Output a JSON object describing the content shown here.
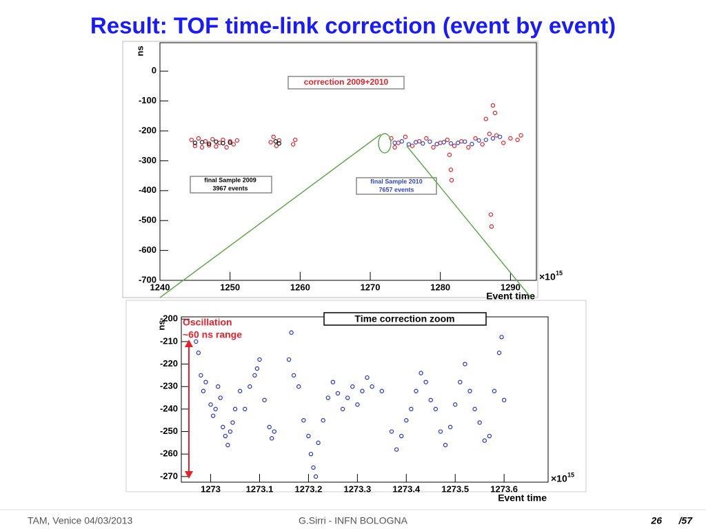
{
  "slide": {
    "title": "Result: TOF time-link correction (event by event)",
    "footer": {
      "left": "TAM, Venice 04/03/2013",
      "center": "G.Sirri - INFN BOLOGNA",
      "page": "26",
      "total": "/57"
    }
  },
  "chart_data": [
    {
      "type": "scatter",
      "annotations": [
        "correction 2009+2010",
        "final Sample 2009",
        "3967 events",
        "final Sample 2010",
        "7657 events"
      ],
      "y_label": "ns",
      "x_label": "Event time",
      "x_scale": {
        "base": "×10",
        "exponent": "15"
      },
      "xlim": [
        1240,
        1293.7
      ],
      "xticks": [
        1240,
        1250,
        1260,
        1270,
        1280,
        1290
      ],
      "ylim": [
        -700,
        95
      ],
      "yticks": [
        0,
        -100,
        -200,
        -300,
        -400,
        -500,
        -600,
        -700
      ],
      "series": [
        {
          "color": "#e8202a",
          "x": [
            1244.5,
            1245,
            1245.5,
            1246,
            1246.5,
            1247,
            1247.5,
            1248,
            1248.5,
            1249,
            1249.5,
            1250,
            1250.5,
            1251,
            1255.8,
            1256.2,
            1256.6,
            1257,
            1259,
            1259.3,
            1273,
            1273.5,
            1274,
            1275,
            1276,
            1277,
            1278,
            1279,
            1280,
            1281,
            1281.3,
            1281.5,
            1281.6,
            1282,
            1283,
            1284,
            1285,
            1286,
            1286.5,
            1287,
            1287.5,
            1287.8,
            1287.2,
            1287.3,
            1288,
            1289,
            1290,
            1291,
            1291.5
          ],
          "values": [
            -230,
            -250,
            -225,
            -255,
            -235,
            -248,
            -228,
            -252,
            -240,
            -230,
            -255,
            -235,
            -245,
            -232,
            -238,
            -220,
            -250,
            -232,
            -245,
            -230,
            -225,
            -255,
            -240,
            -220,
            -250,
            -235,
            -225,
            -255,
            -240,
            -230,
            -280,
            -330,
            -365,
            -250,
            -235,
            -255,
            -225,
            -245,
            -160,
            -210,
            -115,
            -140,
            -480,
            -520,
            -215,
            -240,
            -225,
            -230,
            -215
          ]
        },
        {
          "color": "#3344cc",
          "x": [
            1273.5,
            1274.5,
            1275.5,
            1276.5,
            1277.5,
            1278.5,
            1279.5,
            1280.5,
            1281.5,
            1282.5,
            1283.5,
            1284.5,
            1285.5,
            1286.5,
            1287.5,
            1288.5
          ],
          "values": [
            -240,
            -235,
            -245,
            -238,
            -242,
            -236,
            -244,
            -238,
            -242,
            -240,
            -236,
            -244,
            -232,
            -230,
            -225,
            -220
          ]
        },
        {
          "color": "#111111",
          "x": [
            1245,
            1246,
            1247,
            1248,
            1249,
            1250,
            1256.5,
            1257
          ],
          "values": [
            -240,
            -238,
            -243,
            -236,
            -241,
            -239,
            -235,
            -242
          ]
        }
      ]
    },
    {
      "type": "scatter",
      "title": "Time correction zoom",
      "annotations": [
        "Oscillation",
        "~60 ns range"
      ],
      "y_label": "ns",
      "x_label": "Event time",
      "x_scale": {
        "base": "×10",
        "exponent": "15"
      },
      "xlim": [
        1272.94,
        1273.69
      ],
      "xticks": [
        1273,
        1273.1,
        1273.2,
        1273.3,
        1273.4,
        1273.5,
        1273.6
      ],
      "ylim": [
        -272.5,
        -199
      ],
      "yticks": [
        -200,
        -210,
        -220,
        -230,
        -240,
        -250,
        -260,
        -270
      ],
      "series": [
        {
          "color": "#2233cc",
          "x": [
            1272.97,
            1272.975,
            1272.98,
            1272.985,
            1272.99,
            1273.0,
            1273.005,
            1273.01,
            1273.015,
            1273.02,
            1273.025,
            1273.03,
            1273.035,
            1273.04,
            1273.045,
            1273.05,
            1273.06,
            1273.07,
            1273.08,
            1273.09,
            1273.095,
            1273.1,
            1273.11,
            1273.12,
            1273.125,
            1273.13,
            1273.16,
            1273.165,
            1273.17,
            1273.18,
            1273.19,
            1273.2,
            1273.205,
            1273.21,
            1273.215,
            1273.22,
            1273.23,
            1273.24,
            1273.25,
            1273.26,
            1273.27,
            1273.28,
            1273.29,
            1273.3,
            1273.31,
            1273.32,
            1273.33,
            1273.35,
            1273.37,
            1273.38,
            1273.39,
            1273.4,
            1273.41,
            1273.42,
            1273.43,
            1273.44,
            1273.45,
            1273.46,
            1273.47,
            1273.48,
            1273.49,
            1273.5,
            1273.51,
            1273.52,
            1273.53,
            1273.54,
            1273.55,
            1273.56,
            1273.57,
            1273.58,
            1273.59,
            1273.595,
            1273.6
          ],
          "values": [
            -210,
            -215,
            -225,
            -232,
            -228,
            -238,
            -243,
            -240,
            -230,
            -235,
            -248,
            -252,
            -256,
            -250,
            -246,
            -240,
            -232,
            -240,
            -230,
            -225,
            -222,
            -218,
            -236,
            -248,
            -253,
            -250,
            -218,
            -206,
            -225,
            -230,
            -245,
            -252,
            -260,
            -266,
            -270,
            -255,
            -245,
            -235,
            -228,
            -233,
            -240,
            -235,
            -230,
            -238,
            -232,
            -226,
            -230,
            -232,
            -250,
            -258,
            -252,
            -245,
            -240,
            -232,
            -224,
            -228,
            -236,
            -240,
            -250,
            -256,
            -248,
            -238,
            -228,
            -220,
            -232,
            -240,
            -246,
            -254,
            -252,
            -232,
            -215,
            -208,
            -236
          ]
        }
      ]
    }
  ]
}
